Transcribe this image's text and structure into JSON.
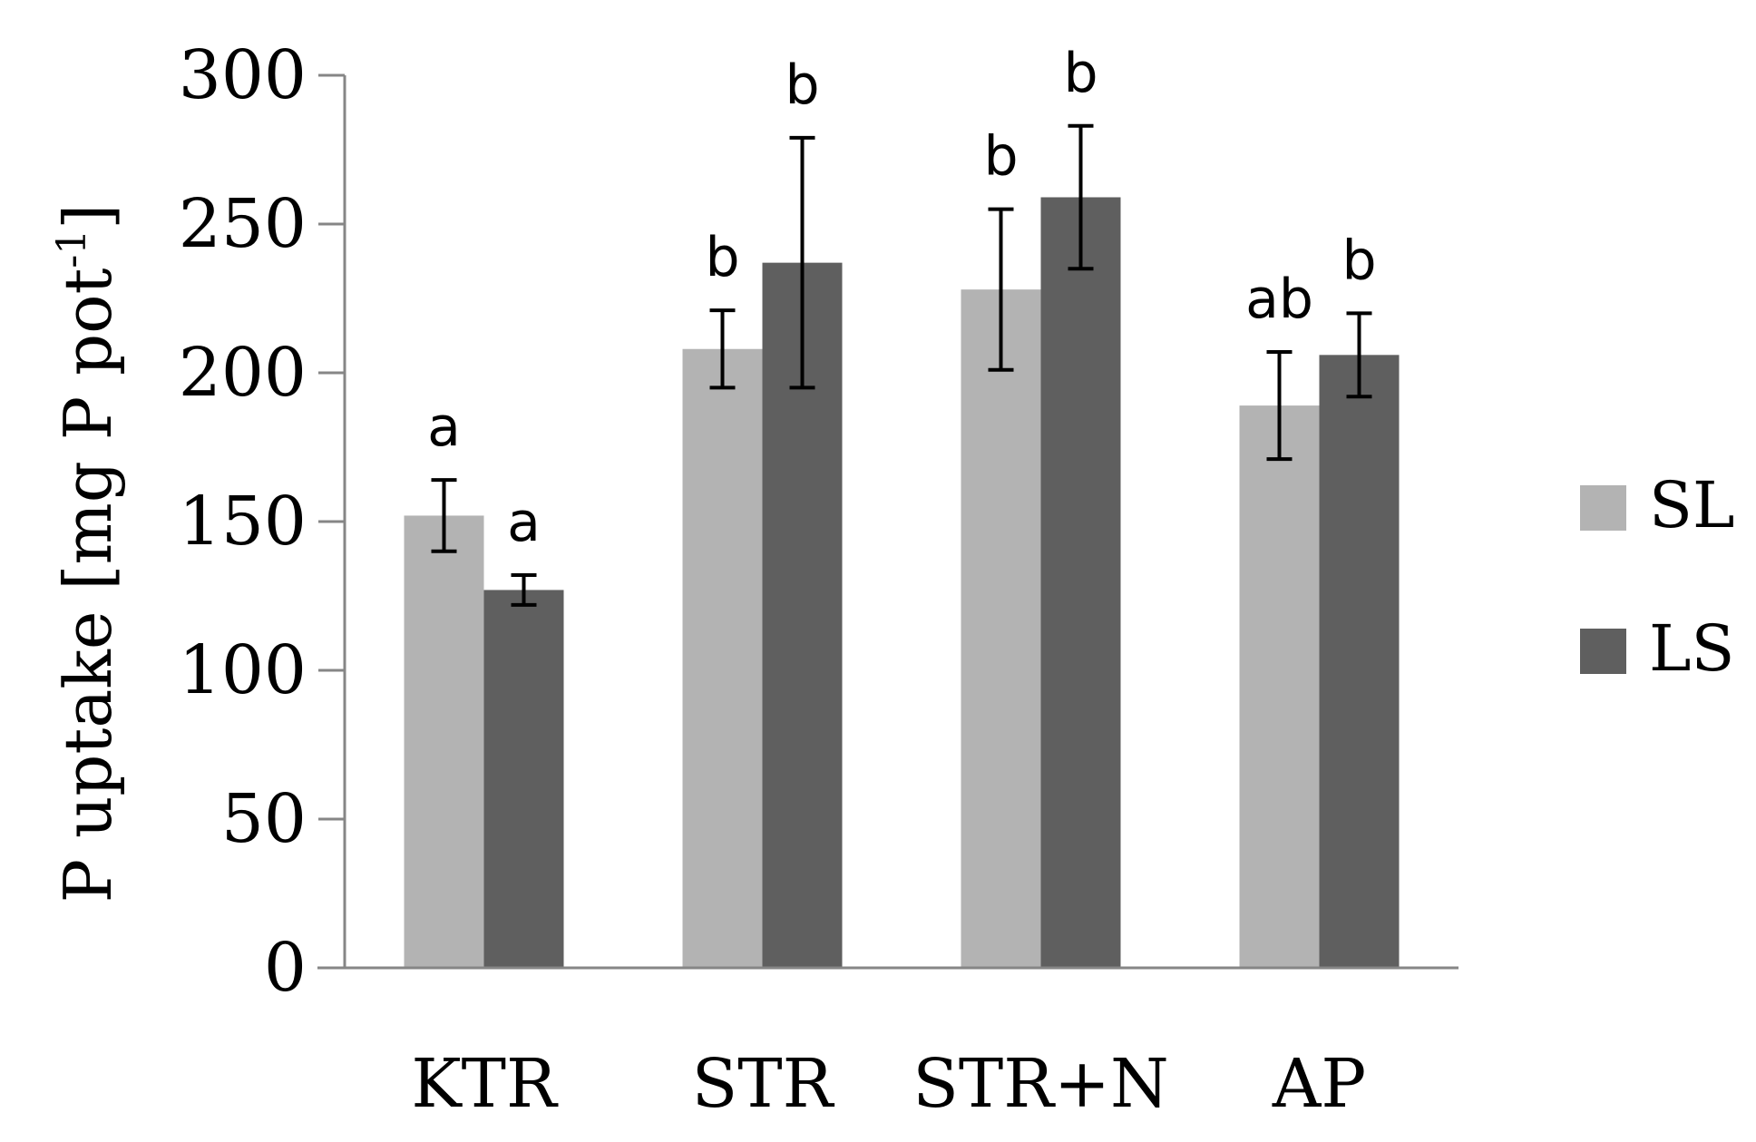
{
  "chart_data": {
    "type": "bar",
    "title": "",
    "xlabel": "",
    "ylabel": "P uptake [mg P pot",
    "ylabel_superscript": "-1",
    "ylabel_close": "]",
    "ylim": [
      0,
      300
    ],
    "yticks": [
      0,
      50,
      100,
      150,
      200,
      250,
      300
    ],
    "grid": false,
    "legend_position": "right",
    "categories": [
      "KTR",
      "STR",
      "STR+N",
      "AP"
    ],
    "series": [
      {
        "name": "SL",
        "color": "#b3b3b3",
        "values": [
          152,
          208,
          228,
          189
        ],
        "errors": [
          12,
          13,
          27,
          18
        ],
        "labels": [
          "a",
          "b",
          "b",
          "ab"
        ]
      },
      {
        "name": "LS",
        "color": "#5f5f5f",
        "values": [
          127,
          237,
          259,
          206
        ],
        "errors": [
          5,
          42,
          24,
          14
        ],
        "labels": [
          "a",
          "b",
          "b",
          "b"
        ]
      }
    ]
  }
}
